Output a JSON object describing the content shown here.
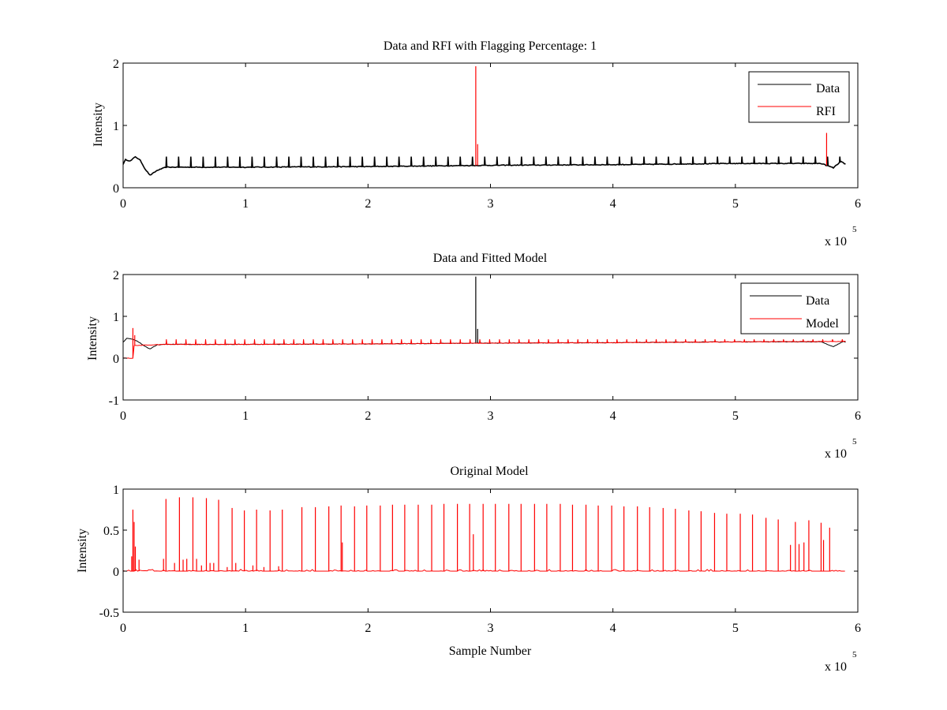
{
  "chart_data": [
    {
      "type": "line",
      "title": "Data and RFI with Flagging Percentage: 1",
      "xlabel": "",
      "ylabel": "Intensity",
      "xlim": [
        0,
        600000
      ],
      "ylim": [
        0,
        2
      ],
      "xticks": [
        "0",
        "1",
        "2",
        "3",
        "4",
        "5",
        "6"
      ],
      "yticks": [
        "0",
        "1",
        "2"
      ],
      "xscale_label": "x 10",
      "xscale_exp": "5",
      "legend_position": "top-right",
      "series": [
        {
          "name": "Data",
          "color": "#000000",
          "baseline": [
            [
              0,
              0.38
            ],
            [
              2000,
              0.45
            ],
            [
              6000,
              0.43
            ],
            [
              10000,
              0.5
            ],
            [
              14000,
              0.44
            ],
            [
              18000,
              0.3
            ],
            [
              22000,
              0.2
            ],
            [
              28000,
              0.28
            ],
            [
              35000,
              0.33
            ],
            [
              100000,
              0.33
            ],
            [
              200000,
              0.34
            ],
            [
              300000,
              0.36
            ],
            [
              400000,
              0.37
            ],
            [
              500000,
              0.39
            ],
            [
              570000,
              0.39
            ],
            [
              580000,
              0.32
            ],
            [
              586000,
              0.42
            ],
            [
              590000,
              0.38
            ]
          ],
          "spike_every": 10000,
          "spike_start": 35000,
          "spike_height": 0.5
        },
        {
          "name": "RFI",
          "color": "#ff0000",
          "spikes": [
            [
              288000,
              1.95
            ],
            [
              289500,
              0.7
            ],
            [
              574500,
              0.88
            ]
          ]
        }
      ]
    },
    {
      "type": "line",
      "title": "Data and Fitted Model",
      "xlabel": "",
      "ylabel": "Intensity",
      "xlim": [
        0,
        600000
      ],
      "ylim": [
        -1,
        2
      ],
      "xticks": [
        "0",
        "1",
        "2",
        "3",
        "4",
        "5",
        "6"
      ],
      "yticks": [
        "-1",
        "0",
        "1",
        "2"
      ],
      "xscale_label": "x 10",
      "xscale_exp": "5",
      "legend_position": "top-right",
      "series": [
        {
          "name": "Data",
          "color": "#000000",
          "baseline": [
            [
              0,
              0.38
            ],
            [
              3000,
              0.47
            ],
            [
              8000,
              0.45
            ],
            [
              12000,
              0.4
            ],
            [
              18000,
              0.28
            ],
            [
              22000,
              0.22
            ],
            [
              28000,
              0.32
            ],
            [
              35000,
              0.33
            ],
            [
              100000,
              0.33
            ],
            [
              200000,
              0.34
            ],
            [
              300000,
              0.36
            ],
            [
              400000,
              0.37
            ],
            [
              500000,
              0.39
            ],
            [
              570000,
              0.39
            ],
            [
              580000,
              0.27
            ],
            [
              588000,
              0.4
            ],
            [
              590000,
              0.38
            ]
          ],
          "spikes": [
            [
              288000,
              1.95
            ],
            [
              289500,
              0.7
            ]
          ]
        },
        {
          "name": "Model",
          "color": "#ff0000",
          "baseline": [
            [
              0,
              0.0
            ],
            [
              8000,
              0.0
            ],
            [
              8500,
              0.3
            ],
            [
              35000,
              0.33
            ],
            [
              100000,
              0.33
            ],
            [
              200000,
              0.34
            ],
            [
              300000,
              0.36
            ],
            [
              400000,
              0.37
            ],
            [
              500000,
              0.39
            ],
            [
              590000,
              0.4
            ]
          ],
          "spikes": [
            [
              8000,
              0.72
            ],
            [
              9500,
              0.55
            ]
          ],
          "spike_every": 8000,
          "spike_start": 35000,
          "spike_height": 0.45
        }
      ]
    },
    {
      "type": "line",
      "title": "Original Model",
      "xlabel": "Sample Number",
      "ylabel": "Intensity",
      "xlim": [
        0,
        600000
      ],
      "ylim": [
        -0.5,
        1
      ],
      "xticks": [
        "0",
        "1",
        "2",
        "3",
        "4",
        "5",
        "6"
      ],
      "yticks": [
        "-0.5",
        "0",
        "0.5",
        "1"
      ],
      "xscale_label": "x 10",
      "xscale_exp": "5",
      "series": [
        {
          "name": "",
          "color": "#ff0000",
          "baseline": [
            [
              0,
              0.0
            ],
            [
              590000,
              0.0
            ]
          ],
          "spikes": [
            [
              7000,
              0.18
            ],
            [
              8000,
              0.75
            ],
            [
              9000,
              0.6
            ],
            [
              10000,
              0.3
            ],
            [
              13000,
              0.14
            ],
            [
              33000,
              0.15
            ],
            [
              35000,
              0.88
            ],
            [
              42000,
              0.1
            ],
            [
              46000,
              0.9
            ],
            [
              49000,
              0.14
            ],
            [
              52000,
              0.15
            ],
            [
              57000,
              0.9
            ],
            [
              60000,
              0.15
            ],
            [
              64000,
              0.07
            ],
            [
              68000,
              0.89
            ],
            [
              71000,
              0.1
            ],
            [
              74000,
              0.1
            ],
            [
              78000,
              0.87
            ],
            [
              85000,
              0.05
            ],
            [
              89000,
              0.77
            ],
            [
              92000,
              0.1
            ],
            [
              99000,
              0.74
            ],
            [
              106000,
              0.07
            ],
            [
              109000,
              0.75
            ],
            [
              115000,
              0.05
            ],
            [
              120000,
              0.74
            ],
            [
              127000,
              0.06
            ],
            [
              130000,
              0.75
            ],
            [
              146000,
              0.78
            ],
            [
              157000,
              0.78
            ],
            [
              168000,
              0.79
            ],
            [
              178000,
              0.8
            ],
            [
              179000,
              0.35
            ],
            [
              189000,
              0.79
            ],
            [
              199000,
              0.8
            ],
            [
              210000,
              0.8
            ],
            [
              220000,
              0.81
            ],
            [
              230000,
              0.81
            ],
            [
              241000,
              0.81
            ],
            [
              252000,
              0.81
            ],
            [
              262000,
              0.82
            ],
            [
              273000,
              0.82
            ],
            [
              283000,
              0.82
            ],
            [
              286000,
              0.45
            ],
            [
              294000,
              0.82
            ],
            [
              304000,
              0.82
            ],
            [
              315000,
              0.82
            ],
            [
              325000,
              0.82
            ],
            [
              336000,
              0.82
            ],
            [
              346000,
              0.82
            ],
            [
              357000,
              0.82
            ],
            [
              367000,
              0.81
            ],
            [
              378000,
              0.81
            ],
            [
              388000,
              0.8
            ],
            [
              399000,
              0.8
            ],
            [
              409000,
              0.79
            ],
            [
              420000,
              0.79
            ],
            [
              430000,
              0.78
            ],
            [
              441000,
              0.77
            ],
            [
              451000,
              0.76
            ],
            [
              462000,
              0.74
            ],
            [
              472000,
              0.73
            ],
            [
              483000,
              0.71
            ],
            [
              493000,
              0.7
            ],
            [
              504000,
              0.7
            ],
            [
              514000,
              0.69
            ],
            [
              525000,
              0.65
            ],
            [
              535000,
              0.63
            ],
            [
              545000,
              0.32
            ],
            [
              549000,
              0.6
            ],
            [
              552000,
              0.33
            ],
            [
              556000,
              0.35
            ],
            [
              560000,
              0.62
            ],
            [
              570000,
              0.59
            ],
            [
              572000,
              0.38
            ],
            [
              577000,
              0.53
            ]
          ],
          "noise_step": 1500,
          "noise_amp": 0.05
        }
      ]
    }
  ]
}
